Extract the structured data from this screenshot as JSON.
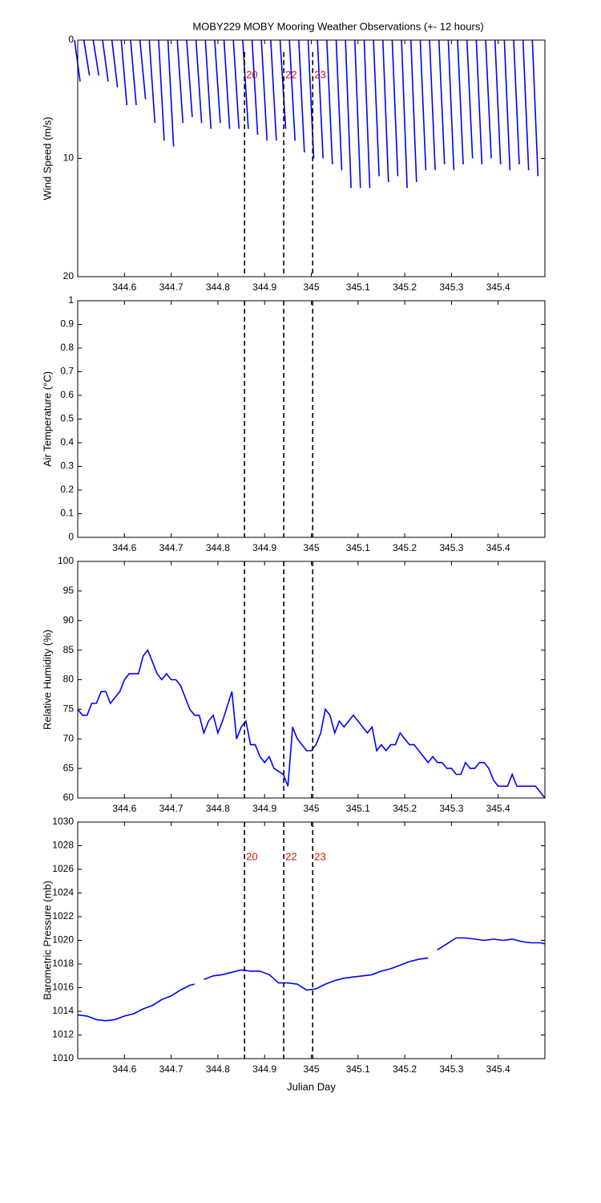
{
  "chart_data": [
    {
      "type": "stick",
      "title": "MOBY229 MOBY Mooring Weather Observations (+- 12 hours)",
      "ylabel": "Wind Speed (m/s)",
      "xlim": [
        344.5,
        345.5
      ],
      "xticks": [
        344.6,
        344.7,
        344.8,
        344.9,
        345,
        345.1,
        345.2,
        345.3,
        345.4
      ],
      "ylim": [
        0,
        20
      ],
      "yticks": [
        0,
        10,
        20
      ],
      "yreverse": true,
      "vlines": [
        344.857,
        344.941,
        345.003
      ],
      "annotations": [
        "20",
        "22",
        "23"
      ],
      "series": [
        {
          "color": "#0000ff",
          "x": [
            344.5,
            344.52,
            344.54,
            344.56,
            344.58,
            344.6,
            344.62,
            344.64,
            344.66,
            344.68,
            344.7,
            344.72,
            344.74,
            344.76,
            344.78,
            344.8,
            344.82,
            344.84,
            344.86,
            344.88,
            344.9,
            344.92,
            344.94,
            344.96,
            344.98,
            345.0,
            345.02,
            345.04,
            345.06,
            345.08,
            345.1,
            345.12,
            345.14,
            345.16,
            345.18,
            345.2,
            345.22,
            345.24,
            345.26,
            345.28,
            345.3,
            345.32,
            345.34,
            345.36,
            345.38,
            345.4,
            345.42,
            345.44,
            345.46,
            345.48
          ],
          "values": [
            3.5,
            3,
            3,
            3.5,
            4,
            5.5,
            5.5,
            5,
            7,
            8.5,
            9,
            7,
            6.5,
            7,
            7.5,
            7,
            7.5,
            7.5,
            7.5,
            8,
            8.5,
            8.5,
            7.5,
            8.5,
            9.5,
            10,
            10,
            10.5,
            11,
            12.5,
            12.5,
            12.5,
            11.5,
            12,
            11.5,
            12.5,
            12,
            11,
            11,
            10.5,
            11,
            10.5,
            10,
            10.5,
            10,
            10.5,
            11,
            10.5,
            11,
            11.5
          ]
        }
      ]
    },
    {
      "type": "line",
      "ylabel": "Air Temperature (°C)",
      "xlim": [
        344.5,
        345.5
      ],
      "xticks": [
        344.6,
        344.7,
        344.8,
        344.9,
        345,
        345.1,
        345.2,
        345.3,
        345.4
      ],
      "ylim": [
        0,
        1
      ],
      "yticks": [
        0,
        0.1,
        0.2,
        0.3,
        0.4,
        0.5,
        0.6,
        0.7,
        0.8,
        0.9,
        1
      ],
      "vlines": [
        344.857,
        344.941,
        345.003
      ],
      "series": []
    },
    {
      "type": "line",
      "ylabel": "Relative Humidity (%)",
      "xlim": [
        344.5,
        345.5
      ],
      "xticks": [
        344.6,
        344.7,
        344.8,
        344.9,
        345,
        345.1,
        345.2,
        345.3,
        345.4
      ],
      "ylim": [
        60,
        100
      ],
      "yticks": [
        60,
        65,
        70,
        75,
        80,
        85,
        90,
        95,
        100
      ],
      "vlines": [
        344.857,
        344.941,
        345.003
      ],
      "series": [
        {
          "color": "#0000ff",
          "x": [
            344.5,
            344.51,
            344.52,
            344.53,
            344.54,
            344.55,
            344.56,
            344.57,
            344.58,
            344.59,
            344.6,
            344.61,
            344.62,
            344.63,
            344.64,
            344.65,
            344.66,
            344.67,
            344.68,
            344.69,
            344.7,
            344.71,
            344.72,
            344.73,
            344.74,
            344.75,
            344.76,
            344.77,
            344.78,
            344.79,
            344.8,
            344.81,
            344.83,
            344.84,
            344.85,
            344.86,
            344.87,
            344.88,
            344.89,
            344.9,
            344.91,
            344.92,
            344.94,
            344.95,
            344.96,
            344.97,
            344.98,
            344.99,
            345.0,
            345.01,
            345.02,
            345.03,
            345.04,
            345.05,
            345.06,
            345.07,
            345.08,
            345.09,
            345.1,
            345.11,
            345.12,
            345.13,
            345.14,
            345.15,
            345.16,
            345.17,
            345.18,
            345.19,
            345.2,
            345.21,
            345.22,
            345.23,
            345.24,
            345.25,
            345.26,
            345.27,
            345.28,
            345.29,
            345.3,
            345.31,
            345.32,
            345.33,
            345.34,
            345.35,
            345.36,
            345.37,
            345.38,
            345.39,
            345.4,
            345.41,
            345.42,
            345.43,
            345.44,
            345.45,
            345.46,
            345.47,
            345.48,
            345.49,
            345.5
          ],
          "values": [
            75,
            74,
            74,
            76,
            76,
            78,
            78,
            76,
            77,
            78,
            80,
            81,
            81,
            81,
            84,
            85,
            83,
            81,
            80,
            81,
            80,
            80,
            79,
            77,
            75,
            74,
            74,
            71,
            73,
            74,
            71,
            73,
            78,
            70,
            72,
            73,
            69,
            69,
            67,
            66,
            67,
            65,
            64,
            62,
            72,
            70,
            69,
            68,
            68,
            69,
            71,
            75,
            74,
            71,
            73,
            72,
            73,
            74,
            73,
            72,
            71,
            72,
            68,
            69,
            68,
            69,
            69,
            71,
            70,
            69,
            69,
            68,
            67,
            66,
            67,
            66,
            66,
            65,
            65,
            64,
            64,
            66,
            65,
            65,
            66,
            66,
            65,
            63,
            62,
            62,
            62,
            64,
            62,
            62,
            62,
            62,
            62,
            61,
            60
          ]
        }
      ]
    },
    {
      "type": "line",
      "ylabel": "Barometric Pressure (mb)",
      "xlabel": "Julian Day",
      "xlim": [
        344.5,
        345.5
      ],
      "xticks": [
        344.6,
        344.7,
        344.8,
        344.9,
        345,
        345.1,
        345.2,
        345.3,
        345.4
      ],
      "ylim": [
        1010,
        1030
      ],
      "yticks": [
        1010,
        1012,
        1014,
        1016,
        1018,
        1020,
        1022,
        1024,
        1026,
        1028,
        1030
      ],
      "vlines": [
        344.857,
        344.941,
        345.003
      ],
      "annotations": [
        "20",
        "22",
        "23"
      ],
      "series": [
        {
          "color": "#0000ff",
          "x": [
            344.5,
            344.52,
            344.54,
            344.56,
            344.58,
            344.6,
            344.62,
            344.64,
            344.66,
            344.68,
            344.7,
            344.72,
            344.74,
            344.75,
            344.76,
            344.77,
            344.79,
            344.81,
            344.83,
            344.85,
            344.87,
            344.89,
            344.91,
            344.93,
            344.95,
            344.97,
            344.99,
            345.01,
            345.03,
            345.05,
            345.07,
            345.09,
            345.11,
            345.13,
            345.15,
            345.17,
            345.19,
            345.21,
            345.23,
            345.25,
            345.26,
            345.27,
            345.29,
            345.31,
            345.33,
            345.35,
            345.37,
            345.39,
            345.41,
            345.43,
            345.45,
            345.47,
            345.49,
            345.5
          ],
          "values": [
            1013.7,
            1013.6,
            1013.3,
            1013.2,
            1013.3,
            1013.6,
            1013.8,
            1014.2,
            1014.5,
            1015.0,
            1015.3,
            1015.8,
            1016.2,
            1016.3,
            null,
            1016.7,
            1017.0,
            1017.1,
            1017.3,
            1017.5,
            1017.4,
            1017.4,
            1017.1,
            1016.4,
            1016.4,
            1016.3,
            1015.8,
            1015.9,
            1016.3,
            1016.6,
            1016.8,
            1016.9,
            1017.0,
            1017.1,
            1017.4,
            1017.6,
            1017.9,
            1018.2,
            1018.4,
            1018.5,
            null,
            1019.2,
            1019.7,
            1020.2,
            1020.2,
            1020.1,
            1020.0,
            1020.1,
            1020.0,
            1020.1,
            1019.9,
            1019.8,
            1019.8,
            1019.7
          ]
        }
      ]
    }
  ]
}
